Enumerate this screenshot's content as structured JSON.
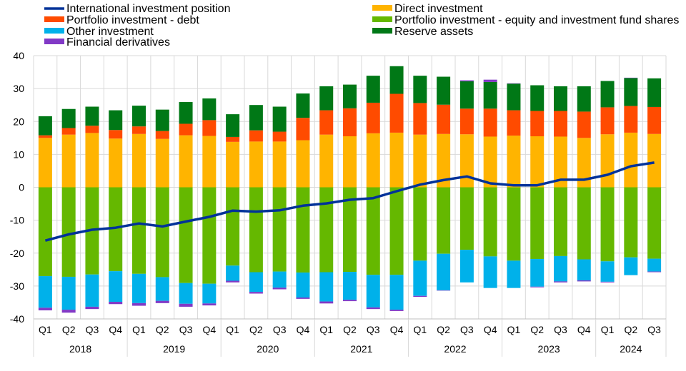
{
  "chart_data": {
    "type": "bar",
    "title": "",
    "xlabel": "",
    "ylabel": "",
    "ylim": [
      -40,
      40
    ],
    "yticks": [
      40,
      30,
      20,
      10,
      0,
      -10,
      -20,
      -30,
      -40
    ],
    "grid": true,
    "legend_position": "top",
    "categories": [
      "Q1",
      "Q2",
      "Q3",
      "Q4",
      "Q1",
      "Q2",
      "Q3",
      "Q4",
      "Q1",
      "Q2",
      "Q3",
      "Q4",
      "Q1",
      "Q2",
      "Q3",
      "Q4",
      "Q1",
      "Q2",
      "Q3",
      "Q4",
      "Q1",
      "Q2",
      "Q3",
      "Q4",
      "Q1",
      "Q2",
      "Q3"
    ],
    "years": [
      {
        "label": "2018",
        "quarters": 4
      },
      {
        "label": "2019",
        "quarters": 4
      },
      {
        "label": "2020",
        "quarters": 4
      },
      {
        "label": "2021",
        "quarters": 4
      },
      {
        "label": "2022",
        "quarters": 4
      },
      {
        "label": "2023",
        "quarters": 4
      },
      {
        "label": "2024",
        "quarters": 3
      }
    ],
    "series": [
      {
        "name": "Direct investment",
        "color": "#ffb400",
        "values": [
          15.0,
          16.0,
          16.5,
          14.8,
          16.2,
          14.7,
          15.8,
          15.6,
          13.8,
          13.9,
          13.9,
          14.3,
          16.0,
          15.5,
          16.4,
          16.6,
          16.0,
          16.2,
          16.1,
          15.4,
          15.7,
          15.5,
          15.4,
          15.0,
          16.1,
          16.6,
          16.2
        ]
      },
      {
        "name": "Portfolio investment - debt",
        "color": "#ff4b00",
        "values": [
          0.8,
          2.0,
          2.2,
          2.6,
          2.3,
          2.4,
          3.5,
          4.8,
          1.5,
          3.4,
          3.0,
          6.8,
          7.4,
          8.5,
          9.3,
          11.8,
          9.6,
          8.9,
          7.8,
          8.5,
          7.7,
          7.7,
          7.8,
          8.0,
          8.2,
          8.1,
          8.2
        ]
      },
      {
        "name": "Reserve assets",
        "color": "#007816",
        "values": [
          5.8,
          5.8,
          5.8,
          6.0,
          6.3,
          6.5,
          6.6,
          6.6,
          6.9,
          7.7,
          7.6,
          7.4,
          7.3,
          7.2,
          8.2,
          8.4,
          8.3,
          8.5,
          8.3,
          8.1,
          8.1,
          7.8,
          7.5,
          7.7,
          8.0,
          8.5,
          8.7
        ]
      },
      {
        "name": "Portfolio investment - equity and investment fund shares",
        "color": "#65b800",
        "values": [
          -27.0,
          -27.2,
          -26.5,
          -25.5,
          -26.3,
          -27.3,
          -29.1,
          -29.3,
          -23.8,
          -25.8,
          -25.6,
          -25.9,
          -25.8,
          -25.7,
          -26.6,
          -26.6,
          -22.3,
          -20.2,
          -19.0,
          -21.0,
          -22.3,
          -21.8,
          -20.9,
          -21.9,
          -22.5,
          -21.3,
          -21.7
        ]
      },
      {
        "name": "Other investment",
        "color": "#00b1ea",
        "values": [
          -9.6,
          -10.0,
          -9.8,
          -9.3,
          -8.9,
          -7.2,
          -6.3,
          -6.0,
          -4.6,
          -6.0,
          -4.9,
          -7.6,
          -8.9,
          -8.5,
          -9.9,
          -10.6,
          -10.7,
          -11.1,
          -9.9,
          -9.6,
          -8.3,
          -8.4,
          -7.7,
          -6.4,
          -6.2,
          -5.4,
          -3.9
        ]
      },
      {
        "name": "Financial derivatives",
        "color": "#8139c6",
        "values": [
          -0.8,
          -0.9,
          -0.7,
          -0.7,
          -0.8,
          -0.7,
          -0.9,
          -0.6,
          -0.5,
          -0.5,
          -0.5,
          -0.4,
          -0.6,
          -0.4,
          -0.5,
          -0.4,
          -0.3,
          -0.1,
          0.3,
          0.7,
          0.1,
          -0.2,
          -0.3,
          -0.3,
          -0.2,
          0.1,
          -0.2
        ]
      }
    ],
    "line": {
      "name": "International investment position",
      "color": "#003299",
      "values": [
        -16.2,
        -14.3,
        -12.9,
        -12.3,
        -11.0,
        -11.9,
        -10.4,
        -9.0,
        -7.1,
        -7.4,
        -7.0,
        -5.6,
        -4.9,
        -3.8,
        -3.3,
        -1.2,
        0.8,
        2.2,
        3.3,
        1.2,
        0.6,
        0.6,
        2.3,
        2.3,
        3.8,
        6.4,
        7.5
      ]
    },
    "legend": {
      "left": [
        "International investment position",
        "Portfolio investment - debt",
        "Other investment",
        "Financial derivatives"
      ],
      "right": [
        "Direct investment",
        "Portfolio investment - equity and investment fund shares",
        "Reserve assets"
      ]
    }
  }
}
